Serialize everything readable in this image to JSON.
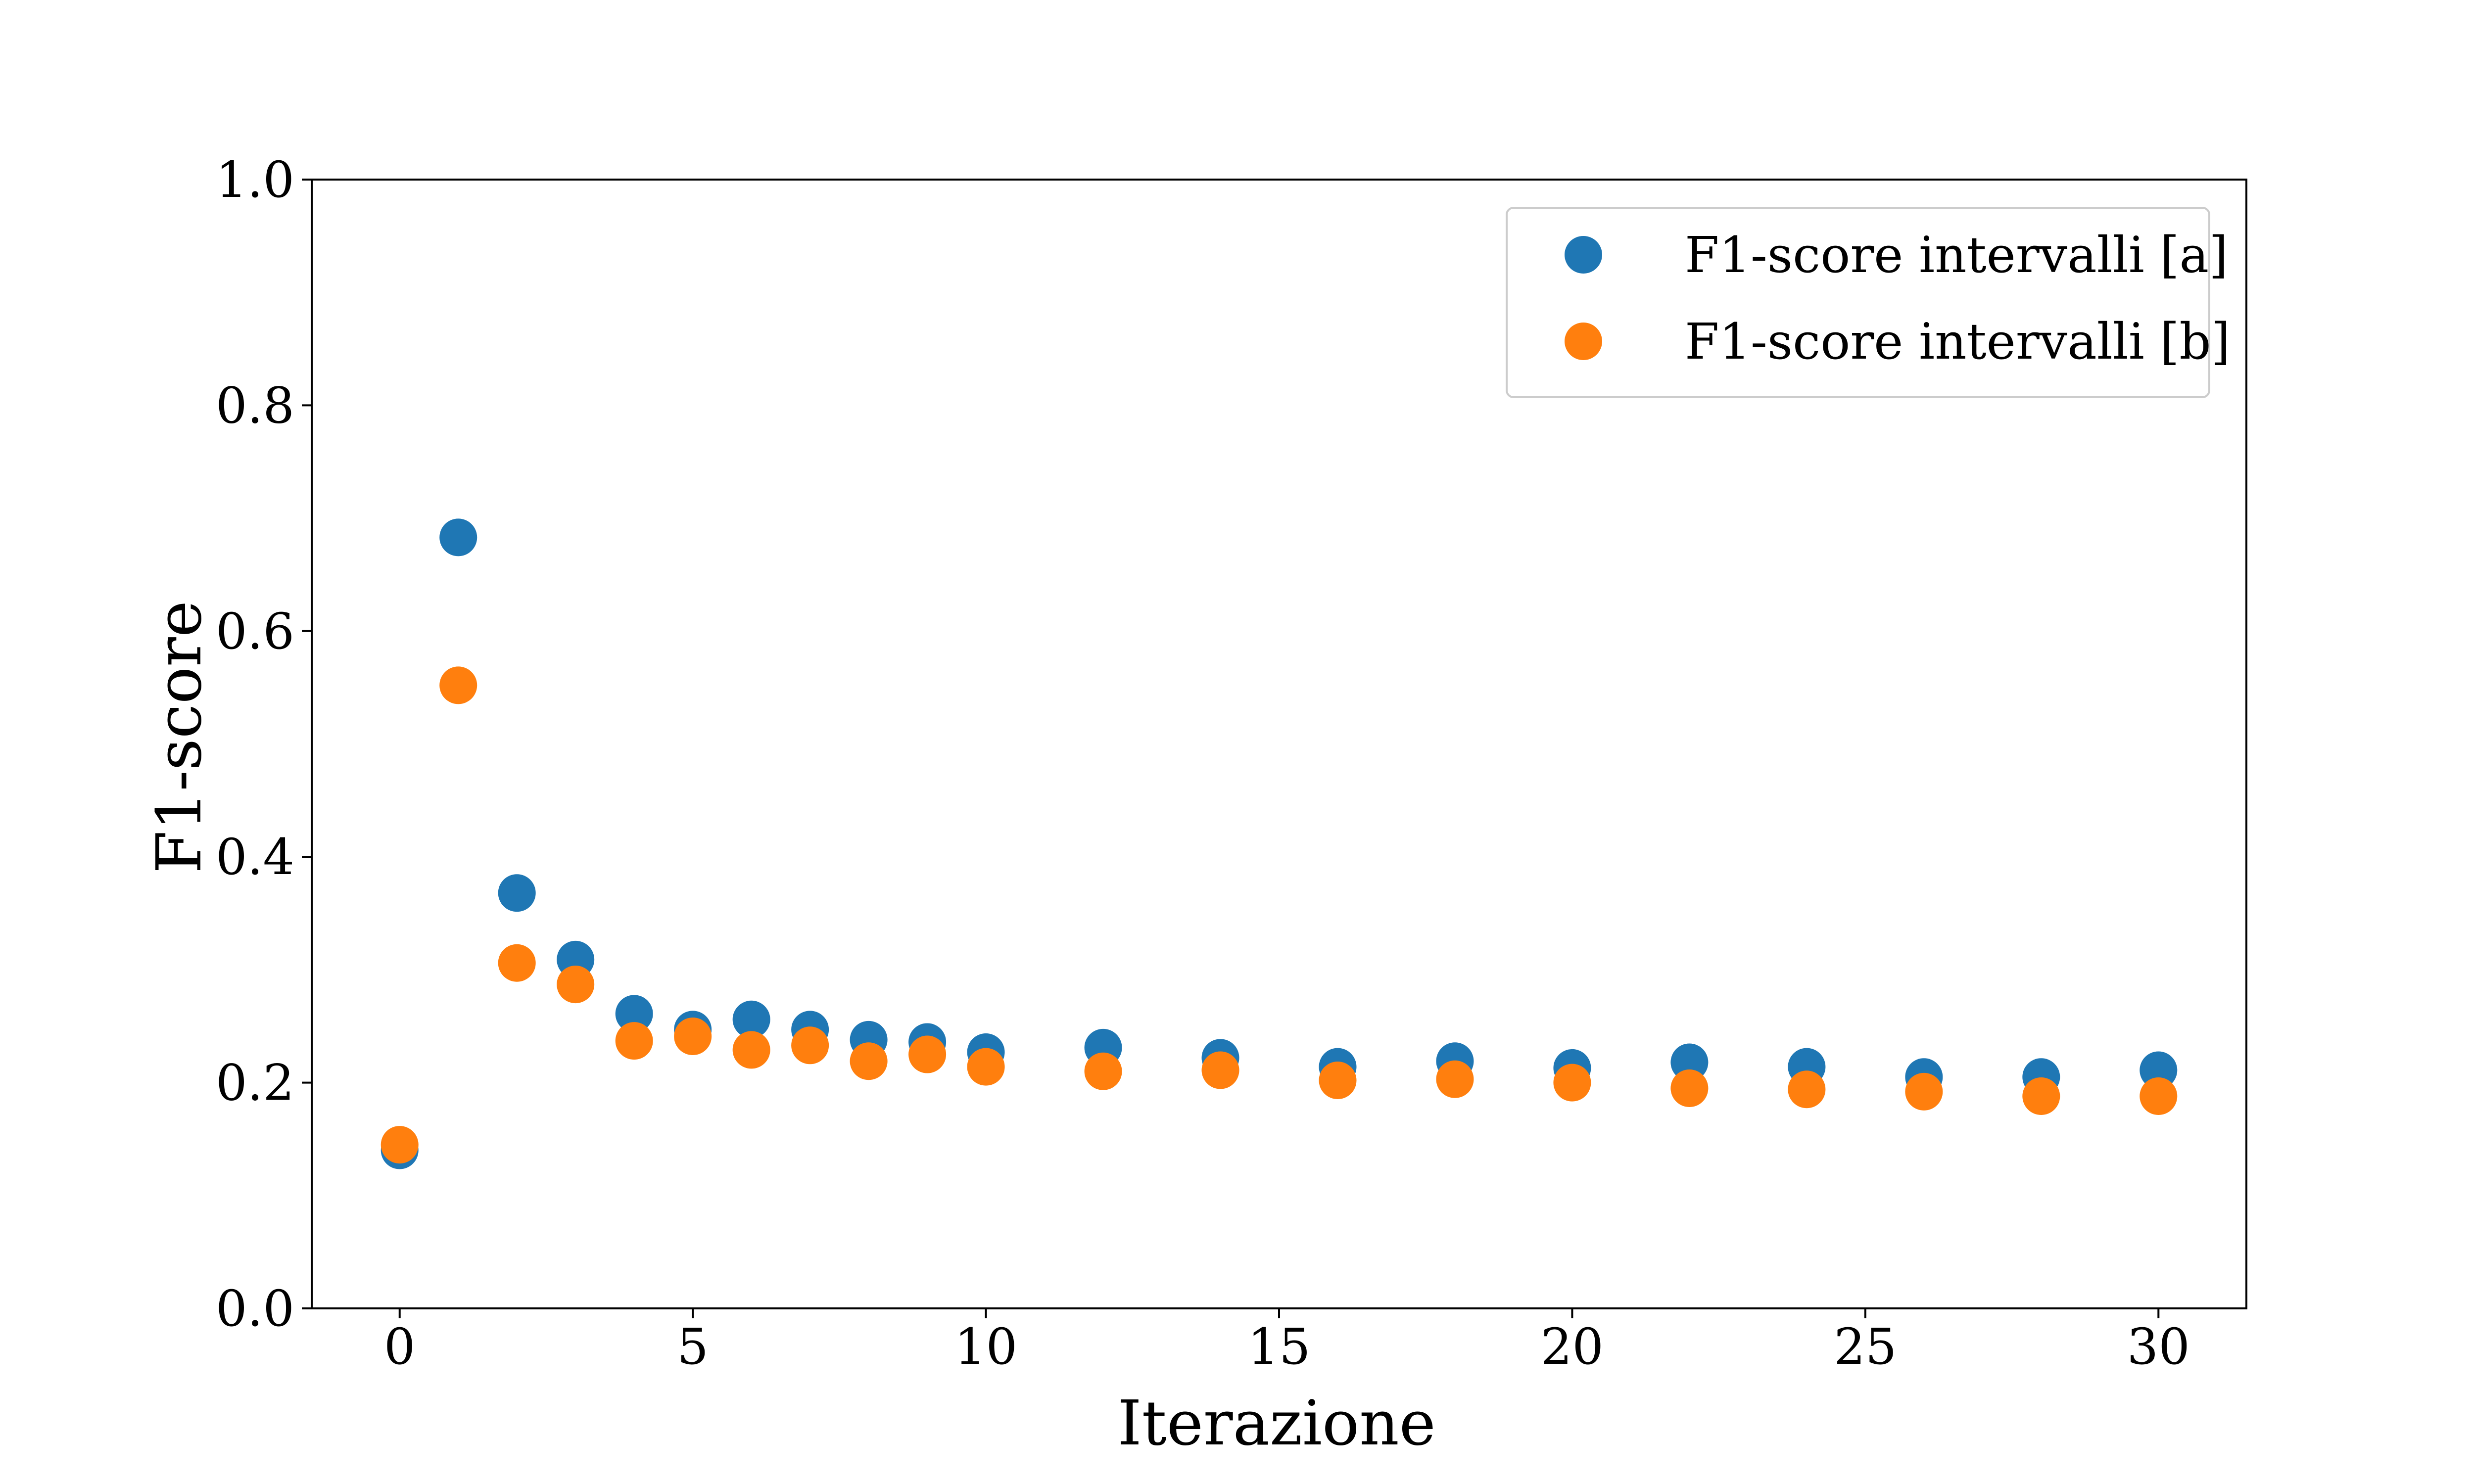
{
  "chart_data": {
    "type": "scatter",
    "xlabel": "Iterazione",
    "ylabel": "F1-score",
    "xlim": [
      -1.5,
      31.5
    ],
    "ylim": [
      0.0,
      1.0
    ],
    "xticks": [
      0,
      5,
      10,
      15,
      20,
      25,
      30
    ],
    "yticks": [
      0.0,
      0.2,
      0.4,
      0.6,
      0.8,
      1.0
    ],
    "xtick_labels": [
      "0",
      "5",
      "10",
      "15",
      "20",
      "25",
      "30"
    ],
    "ytick_labels": [
      "0.0",
      "0.2",
      "0.4",
      "0.6",
      "0.8",
      "1.0"
    ],
    "grid": false,
    "legend_position": "top-right",
    "x": [
      0,
      1,
      2,
      3,
      4,
      5,
      6,
      7,
      8,
      9,
      10,
      12,
      14,
      16,
      18,
      20,
      22,
      24,
      26,
      28,
      30
    ],
    "series": [
      {
        "name": "F1-score intervalli [a]",
        "color": "#1f77b4",
        "values": [
          0.14,
          0.683,
          0.368,
          0.309,
          0.261,
          0.247,
          0.256,
          0.247,
          0.238,
          0.236,
          0.227,
          0.231,
          0.222,
          0.214,
          0.219,
          0.213,
          0.218,
          0.214,
          0.205,
          0.205,
          0.211
        ]
      },
      {
        "name": "F1-score intervalli [b]",
        "color": "#ff7f0e",
        "values": [
          0.145,
          0.552,
          0.306,
          0.287,
          0.237,
          0.241,
          0.229,
          0.233,
          0.219,
          0.225,
          0.214,
          0.21,
          0.211,
          0.202,
          0.203,
          0.2,
          0.195,
          0.194,
          0.192,
          0.188,
          0.188
        ]
      }
    ]
  }
}
